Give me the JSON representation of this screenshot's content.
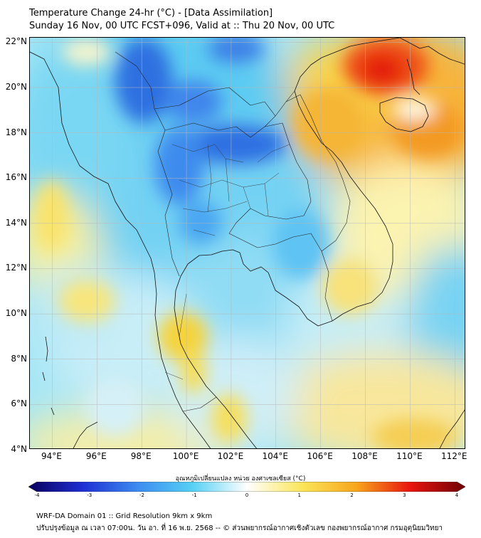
{
  "header": {
    "title_line1": "Temperature Change 24-hr (°C) - [Data Assimilation]",
    "title_line2": "Sunday 16 Nov, 00 UTC FCST+096, Valid at :: Thu 20 Nov, 00 UTC"
  },
  "map": {
    "lat_labels": [
      "22°N",
      "20°N",
      "18°N",
      "16°N",
      "14°N",
      "12°N",
      "10°N",
      "8°N",
      "6°N",
      "4°N"
    ],
    "lon_labels": [
      "94°E",
      "96°E",
      "98°E",
      "100°E",
      "102°E",
      "104°E",
      "106°E",
      "108°E",
      "110°E",
      "112°E"
    ],
    "extent": {
      "lon_min": 93.0,
      "lon_max": 112.5,
      "lat_min": 4.0,
      "lat_max": 22.2
    },
    "field_features": [
      {
        "name": "cooling-north-myanmar",
        "lon": 98.2,
        "lat": 20.5,
        "value": -2.3
      },
      {
        "name": "cooling-north-thailand",
        "lon": 100.0,
        "lat": 18.8,
        "value": -1.8
      },
      {
        "name": "cooling-laos",
        "lon": 102.8,
        "lat": 17.6,
        "value": -2.5
      },
      {
        "name": "cooling-west-thailand",
        "lon": 99.3,
        "lat": 16.2,
        "value": -1.9
      },
      {
        "name": "warming-south-china",
        "lon": 109.2,
        "lat": 21.0,
        "value": 3.2
      },
      {
        "name": "warming-gulf-tonkin",
        "lon": 107.0,
        "lat": 19.0,
        "value": 1.6
      },
      {
        "name": "warming-south-gulf",
        "lon": 99.8,
        "lat": 9.2,
        "value": 1.1
      },
      {
        "name": "warming-south-china-sea",
        "lon": 109.0,
        "lat": 6.5,
        "value": 1.0
      },
      {
        "name": "warming-andaman",
        "lon": 94.0,
        "lat": 13.5,
        "value": 0.9
      }
    ]
  },
  "colorbar": {
    "title": "อุณหภูมิเปลี่ยนแปลง หน่วย องศาเซลเซียส (°C)",
    "ticks": [
      "-4",
      "-3",
      "-2",
      "-1",
      "0",
      "1",
      "2",
      "3",
      "4"
    ],
    "min": -4,
    "max": 4,
    "colors": [
      "#08005c",
      "#1f2fd4",
      "#3d8cf0",
      "#55d0f5",
      "#ffffff",
      "#fbe65a",
      "#f8a61c",
      "#e8140d",
      "#6e0006"
    ]
  },
  "footer": {
    "line1": "WRF-DA Domain 01 :: Grid Resolution 9km x 9km",
    "line2": "ปรับปรุงข้อมูล ณ เวลา 07:00น. วัน อา. ที่ 16 พ.ย. 2568 -- © ส่วนพยากรณ์อากาศเชิงตัวเลข กองพยากรณ์อากาศ กรมอุตุนิยมวิทยา"
  }
}
